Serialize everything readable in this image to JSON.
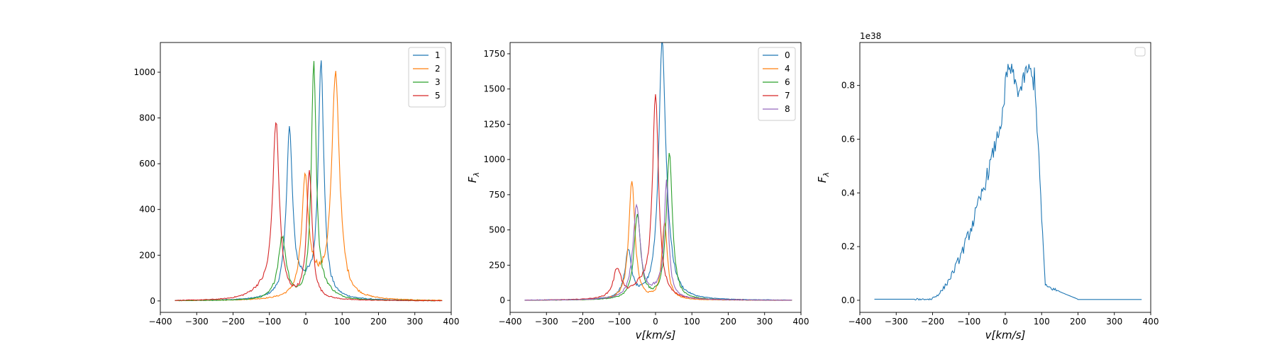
{
  "chart_data": [
    {
      "type": "line",
      "title": "",
      "xlabel": "",
      "ylabel": "",
      "xlim": [
        -400,
        400
      ],
      "ylim": [
        -50,
        1130
      ],
      "xticks": [
        -400,
        -300,
        -200,
        -100,
        0,
        100,
        200,
        300,
        400
      ],
      "yticks": [
        0,
        200,
        400,
        600,
        800,
        1000
      ],
      "offset_text": "",
      "legend": "top-right",
      "series": [
        {
          "name": "1",
          "color": "#1f77b4",
          "peaks": [
            {
              "x": 42,
              "amp": 1030,
              "w": 9
            },
            {
              "x": -45,
              "amp": 720,
              "w": 10
            },
            {
              "x": -5,
              "amp": 60,
              "w": 40
            }
          ]
        },
        {
          "name": "2",
          "color": "#ff7f0e",
          "peaks": [
            {
              "x": 82,
              "amp": 980,
              "w": 13
            },
            {
              "x": -2,
              "amp": 480,
              "w": 11
            },
            {
              "x": 20,
              "amp": 70,
              "w": 30
            }
          ]
        },
        {
          "name": "3",
          "color": "#2ca02c",
          "peaks": [
            {
              "x": 22,
              "amp": 1030,
              "w": 8
            },
            {
              "x": -65,
              "amp": 270,
              "w": 14
            },
            {
              "x": 50,
              "amp": 40,
              "w": 30
            }
          ]
        },
        {
          "name": "5",
          "color": "#d62728",
          "peaks": [
            {
              "x": -82,
              "amp": 760,
              "w": 11
            },
            {
              "x": 10,
              "amp": 560,
              "w": 9
            },
            {
              "x": -120,
              "amp": 40,
              "w": 40
            }
          ]
        }
      ]
    },
    {
      "type": "line",
      "title": "",
      "xlabel": "v[km/s]",
      "ylabel": "F_λ",
      "xlim": [
        -400,
        400
      ],
      "ylim": [
        -85,
        1830
      ],
      "xticks": [
        -400,
        -300,
        -200,
        -100,
        0,
        100,
        200,
        300,
        400
      ],
      "yticks": [
        0,
        250,
        500,
        750,
        1000,
        1250,
        1500,
        1750
      ],
      "yticklabels": [
        "0",
        "250",
        "500",
        "750",
        "1000",
        "1250",
        "1500",
        "1750"
      ],
      "offset_text": "",
      "legend": "top-right",
      "series": [
        {
          "name": "0",
          "color": "#1f77b4",
          "peaks": [
            {
              "x": 18,
              "amp": 1700,
              "w": 11
            },
            {
              "x": -75,
              "amp": 330,
              "w": 11
            },
            {
              "x": 30,
              "amp": 200,
              "w": 20
            }
          ]
        },
        {
          "name": "4",
          "color": "#ff7f0e",
          "peaks": [
            {
              "x": -65,
              "amp": 850,
              "w": 10
            },
            {
              "x": 25,
              "amp": 550,
              "w": 9
            }
          ]
        },
        {
          "name": "6",
          "color": "#2ca02c",
          "peaks": [
            {
              "x": 38,
              "amp": 1040,
              "w": 10
            },
            {
              "x": -50,
              "amp": 600,
              "w": 11
            }
          ]
        },
        {
          "name": "7",
          "color": "#d62728",
          "peaks": [
            {
              "x": 0,
              "amp": 1430,
              "w": 10
            },
            {
              "x": -105,
              "amp": 210,
              "w": 13
            },
            {
              "x": -40,
              "amp": 80,
              "w": 30
            }
          ]
        },
        {
          "name": "8",
          "color": "#9467bd",
          "peaks": [
            {
              "x": -52,
              "amp": 660,
              "w": 12
            },
            {
              "x": 30,
              "amp": 800,
              "w": 7
            },
            {
              "x": 10,
              "amp": 60,
              "w": 30
            }
          ]
        }
      ]
    },
    {
      "type": "line",
      "title": "",
      "xlabel": "v[km/s]",
      "ylabel": "F_λ",
      "xlim": [
        -400,
        400
      ],
      "ylim": [
        -0.045,
        0.96
      ],
      "xticks": [
        -400,
        -300,
        -200,
        -100,
        0,
        100,
        200,
        300,
        400
      ],
      "yticks": [
        0.0,
        0.2,
        0.4,
        0.6,
        0.8
      ],
      "yticklabels": [
        "0.0",
        "0.2",
        "0.4",
        "0.6",
        "0.8"
      ],
      "offset_text": "1e38",
      "legend": "top-right",
      "series": [
        {
          "name": "",
          "color": "#1f77b4",
          "profile": "broad"
        }
      ]
    }
  ]
}
